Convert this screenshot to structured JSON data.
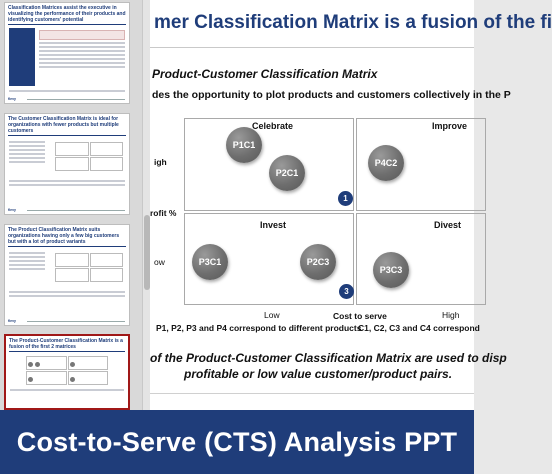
{
  "banner": {
    "title": "Cost-to-Serve (CTS) Analysis PPT"
  },
  "thumbnails": [
    {
      "title": "Classification Matrices assist the executive in visualizing the performance of their products and identifying customers' potential",
      "footer": "flevy"
    },
    {
      "title": "The Customer Classification Matrix is ideal for organizations with fewer products but multiple customers",
      "footer": "flevy"
    },
    {
      "title": "The Product Classification Matrix suits organizations having only a few big customers but with a lot of product variants",
      "footer": "flevy"
    },
    {
      "title": "The Product-Customer Classification Matrix is a fusion of the first 2 matrices",
      "footer": "flevy"
    }
  ],
  "slide": {
    "title": "mer Classification Matrix is a fusion of the fi",
    "matrix_heading": "Product-Customer Classification Matrix",
    "matrix_desc": "des the opportunity to plot products and customers collectively in the P",
    "quadrants": {
      "top_left": "Celebrate",
      "top_right": "Improve",
      "bottom_left": "Invest",
      "bottom_right": "Divest"
    },
    "bubbles": [
      "P1C1",
      "P2C1",
      "P4C2",
      "P3C1",
      "P2C3",
      "P3C3"
    ],
    "badges": [
      "1",
      "3"
    ],
    "y_axis": {
      "high": "igh",
      "label": "rofit %",
      "low": "ow"
    },
    "x_axis": {
      "low": "Low",
      "label": "Cost to serve",
      "high": "High"
    },
    "note_left": "P1, P2, P3 and P4 correspond to different products",
    "note_right": "C1, C2, C3 and C4 correspond",
    "bottom_line_1": "of the Product-Customer Classification Matrix are used to disp",
    "bottom_line_2": "profitable or low value customer/product pairs."
  }
}
